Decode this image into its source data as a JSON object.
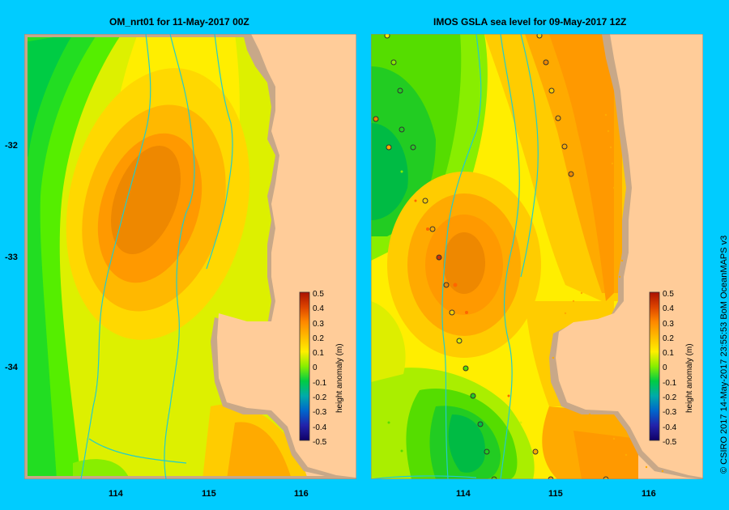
{
  "panels": {
    "left_title": "OM_nrt01  for 11-May-2017 00Z",
    "right_title": "IMOS  GSLA sea level   for 09-May-2017 12Z"
  },
  "axes": {
    "lat_labels": [
      "-32",
      "-33",
      "-34"
    ],
    "lon_labels": [
      "114",
      "115",
      "116"
    ]
  },
  "colorbar": {
    "label": "height anomaly (m)",
    "ticks": [
      "0.5",
      "0.4",
      "0.3",
      "0.2",
      "0.1",
      "0",
      "-0.1",
      "-0.2",
      "-0.3",
      "-0.4",
      "-0.5"
    ]
  },
  "credit": "© CSIRO 2017   14-May-2017 23:55:53 BoM OceanMAPS v3",
  "colors": {
    "background": "#00ccff",
    "land": "#ffcc99",
    "shelf": "#c8a888",
    "contour_line": "#22cccc"
  }
}
